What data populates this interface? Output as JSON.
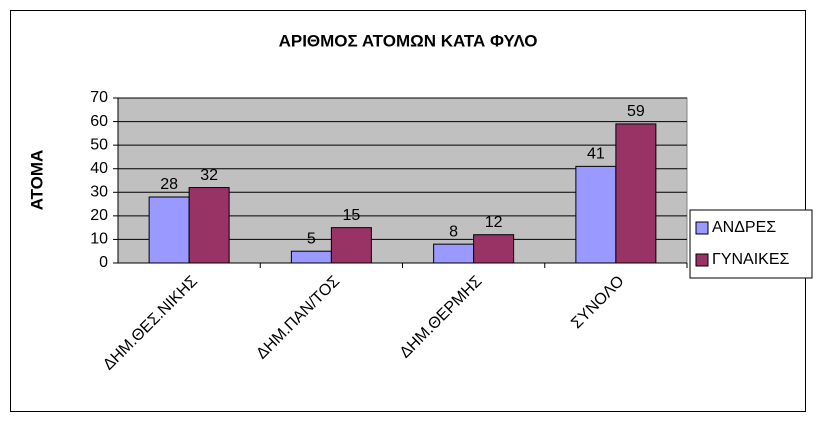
{
  "chart_data": {
    "type": "bar",
    "title": "ΑΡΙΘΜΟΣ ΑΤΟΜΩΝ ΚΑΤΑ ΦΥΛΟ",
    "y_label": "ΑΤΟΜΑ",
    "categories": [
      "ΔΗΜ.ΘΕΣ.ΝΙΚΗΣ",
      "ΔΗΜ.ΠΑΝ/ΤΟΣ",
      "ΔΗΜ.ΘΕΡΜΗΣ",
      "ΣΥΝΟΛΟ"
    ],
    "series": [
      {
        "name": "ΑΝΔΡΕΣ",
        "color": "#9999ff",
        "values": [
          28,
          5,
          8,
          41
        ]
      },
      {
        "name": "ΓΥΝΑΙΚΕΣ",
        "color": "#993366",
        "values": [
          32,
          15,
          12,
          59
        ]
      }
    ],
    "ylim": [
      0,
      70
    ],
    "yticks": [
      0,
      10,
      20,
      30,
      40,
      50,
      60,
      70
    ],
    "grid": true,
    "legend": "right"
  }
}
